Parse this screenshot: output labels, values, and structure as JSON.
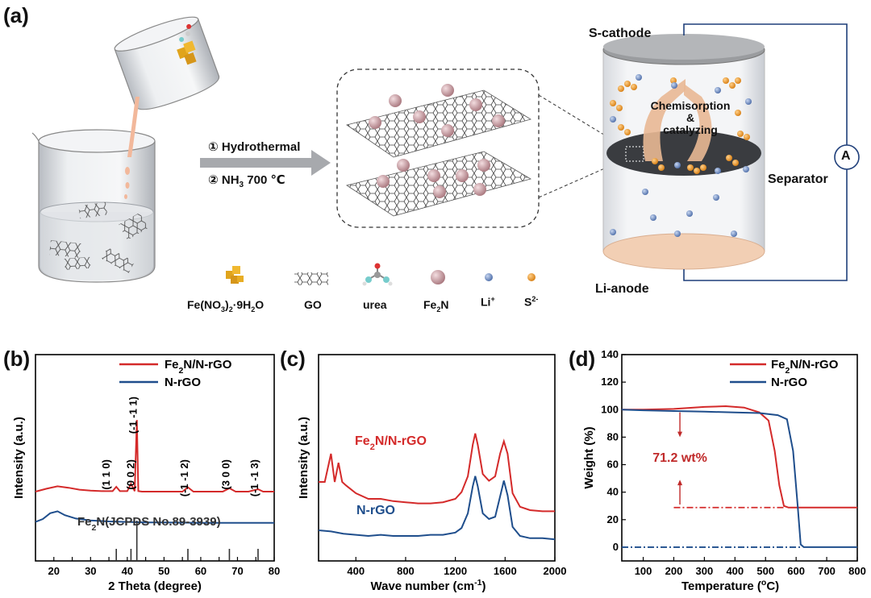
{
  "panels": {
    "a": "(a)",
    "b": "(b)",
    "c": "(c)",
    "d": "(d)"
  },
  "scheme": {
    "step1": "① Hydrothermal",
    "step2": "② NH",
    "step2_sub": "3",
    "step2_tail": " 700 ℃",
    "cathode": "S-cathode",
    "anode": "Li-anode",
    "separator": "Separator",
    "chem1": "Chemisorption",
    "chem2": "&",
    "chem3": "catalyzing",
    "meter_symbol": "A",
    "legend": [
      {
        "key": "fe",
        "text": "Fe(NO",
        "sub1": "3",
        "mid": ")",
        "sub2": "2",
        "tail": "·9H",
        "sub3": "2",
        "end": "O"
      },
      {
        "key": "go",
        "text": "GO"
      },
      {
        "key": "urea",
        "text": "urea"
      },
      {
        "key": "fe2n",
        "text": "Fe",
        "sub1": "2",
        "end": "N"
      },
      {
        "key": "li",
        "text": "Li",
        "sup": "+"
      },
      {
        "key": "s",
        "text": "S",
        "sup": "2-"
      }
    ]
  },
  "chart_data": [
    {
      "type": "line",
      "panel": "b",
      "xlabel": "2 Theta (degree)",
      "ylabel": "Intensity (a.u.)",
      "xlim": [
        15,
        80
      ],
      "xticks": [
        20,
        25,
        30,
        35,
        40,
        45,
        50,
        55,
        60,
        65,
        70,
        75,
        80
      ],
      "series": [
        {
          "name": "Fe2N/N-rGO",
          "legend_text": "Fe",
          "legend_sub": "2",
          "legend_tail": "N/N-rGO",
          "color": "#d42a2a",
          "x": [
            15,
            18,
            21,
            24,
            27,
            30,
            33,
            36,
            37,
            38,
            40,
            41,
            42,
            42.6,
            43,
            44,
            46,
            50,
            55,
            56.5,
            58,
            62,
            66,
            67.8,
            69.5,
            73,
            75.6,
            77,
            80
          ],
          "y": [
            0.3,
            0.36,
            0.41,
            0.38,
            0.34,
            0.32,
            0.31,
            0.31,
            0.4,
            0.31,
            0.31,
            0.46,
            0.31,
            1.78,
            0.31,
            0.3,
            0.3,
            0.3,
            0.3,
            0.39,
            0.3,
            0.3,
            0.3,
            0.37,
            0.3,
            0.3,
            0.35,
            0.3,
            0.3
          ]
        },
        {
          "name": "N-rGO",
          "legend_text": "N-rGO",
          "color": "#1f4e8c",
          "x": [
            15,
            17,
            19,
            21,
            23,
            26,
            30,
            35,
            40,
            45,
            50,
            60,
            70,
            80
          ],
          "y": [
            0.04,
            0.1,
            0.22,
            0.26,
            0.18,
            0.11,
            0.07,
            0.05,
            0.04,
            0.03,
            0.03,
            0.02,
            0.02,
            0.02
          ]
        }
      ],
      "peak_labels": [
        {
          "text": "(1 1 0)",
          "x": 37
        },
        {
          "text": "(0 0 2)",
          "x": 41
        },
        {
          "text": "(-1 -1 1)",
          "x": 42.6
        },
        {
          "text": "(-1 -1 2)",
          "x": 56.5
        },
        {
          "text": "(3 0 0)",
          "x": 67.8
        },
        {
          "text": "(-1 -1 3)",
          "x": 75.6
        }
      ],
      "reference": {
        "label": "Fe2N(JCPDS No.89-3939)",
        "label_main": "Fe",
        "label_sub": "2",
        "label_tail": "N(JCPDS No.89-3939)",
        "lines": [
          {
            "x": 37,
            "h": 0.3
          },
          {
            "x": 41,
            "h": 0.3
          },
          {
            "x": 42.6,
            "h": 1.0
          },
          {
            "x": 56.5,
            "h": 0.3
          },
          {
            "x": 67.8,
            "h": 0.3
          },
          {
            "x": 75.6,
            "h": 0.3
          }
        ]
      }
    },
    {
      "type": "line",
      "panel": "c",
      "xlabel": "Wave number (cm",
      "xlabel_sup": "-1",
      "xlabel_tail": ")",
      "ylabel": "Intensity (a.u.)",
      "xlim": [
        100,
        2000
      ],
      "xticks": [
        400,
        800,
        1200,
        1600,
        2000
      ],
      "series": [
        {
          "name": "Fe2N/N-rGO",
          "label_text": "Fe",
          "label_sub": "2",
          "label_tail": "N/N-rGO",
          "color": "#d42a2a",
          "x": [
            100,
            150,
            200,
            230,
            260,
            290,
            320,
            400,
            500,
            600,
            700,
            800,
            900,
            1000,
            1100,
            1200,
            1250,
            1300,
            1340,
            1360,
            1380,
            1420,
            1470,
            1520,
            1560,
            1590,
            1620,
            1660,
            1720,
            1800,
            1900,
            2000
          ],
          "y": [
            0.55,
            0.55,
            0.8,
            0.55,
            0.72,
            0.55,
            0.52,
            0.45,
            0.4,
            0.4,
            0.38,
            0.37,
            0.36,
            0.36,
            0.37,
            0.4,
            0.46,
            0.6,
            0.88,
            0.98,
            0.88,
            0.62,
            0.56,
            0.6,
            0.8,
            0.91,
            0.8,
            0.45,
            0.33,
            0.3,
            0.29,
            0.29
          ]
        },
        {
          "name": "N-rGO",
          "label_text": "N-rGO",
          "color": "#1f4e8c",
          "x": [
            100,
            200,
            300,
            400,
            500,
            600,
            700,
            800,
            900,
            1000,
            1100,
            1200,
            1250,
            1300,
            1340,
            1360,
            1380,
            1420,
            1470,
            1520,
            1560,
            1590,
            1620,
            1660,
            1720,
            1800,
            1900,
            2000
          ],
          "y": [
            0.05,
            0.04,
            0.02,
            0.01,
            0.0,
            0.01,
            0.0,
            0.0,
            0.0,
            0.01,
            0.01,
            0.03,
            0.07,
            0.2,
            0.44,
            0.53,
            0.44,
            0.2,
            0.15,
            0.17,
            0.35,
            0.49,
            0.36,
            0.08,
            0.0,
            -0.02,
            -0.02,
            -0.03
          ]
        }
      ]
    },
    {
      "type": "line",
      "panel": "d",
      "xlabel": "Temperature (",
      "xlabel_sup": "o",
      "xlabel_tail": "C)",
      "ylabel": "Weight (%)",
      "xlim": [
        30,
        800
      ],
      "ylim": [
        -10,
        140
      ],
      "xticks": [
        100,
        200,
        300,
        400,
        500,
        600,
        700,
        800
      ],
      "yticks": [
        0,
        20,
        40,
        60,
        80,
        100,
        120,
        140
      ],
      "series": [
        {
          "name": "Fe2N/N-rGO",
          "legend_text": "Fe",
          "legend_sub": "2",
          "legend_tail": "N/N-rGO",
          "color": "#d42a2a",
          "x": [
            30,
            100,
            200,
            300,
            370,
            430,
            480,
            510,
            530,
            545,
            560,
            575,
            800
          ],
          "y": [
            100,
            100,
            100.5,
            102,
            102.5,
            101.5,
            98,
            92,
            70,
            45,
            30,
            28.8,
            28.8
          ]
        },
        {
          "name": "N-rGO",
          "legend_text": "N-rGO",
          "color": "#1f4e8c",
          "x": [
            30,
            100,
            200,
            300,
            400,
            480,
            540,
            570,
            590,
            605,
            615,
            625,
            800
          ],
          "y": [
            100,
            99.5,
            99,
            98.5,
            98,
            97.5,
            96,
            93,
            70,
            30,
            2,
            0,
            0
          ]
        }
      ],
      "annotation": "71.2 wt%",
      "residual": {
        "fe2n": 28.8,
        "nrgo": 0
      }
    }
  ]
}
